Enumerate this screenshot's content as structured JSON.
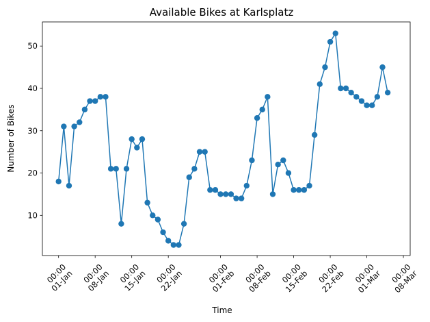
{
  "chart_data": {
    "type": "line",
    "title": "Available Bikes at Karlsplatz",
    "xlabel": "Time",
    "ylabel": "Number of Bikes",
    "grid": false,
    "marker": "circle",
    "series_color": "#1f77b4",
    "x_start": "2023-01-01",
    "x_step_days": 1,
    "x_ticks": [
      {
        "label_time": "00:00",
        "label_date": "01-Jan",
        "day": 0
      },
      {
        "label_time": "00:00",
        "label_date": "08-Jan",
        "day": 7
      },
      {
        "label_time": "00:00",
        "label_date": "15-Jan",
        "day": 14
      },
      {
        "label_time": "00:00",
        "label_date": "22-Jan",
        "day": 21
      },
      {
        "label_time": "00:00",
        "label_date": "01-Feb",
        "day": 31
      },
      {
        "label_time": "00:00",
        "label_date": "08-Feb",
        "day": 38
      },
      {
        "label_time": "00:00",
        "label_date": "15-Feb",
        "day": 45
      },
      {
        "label_time": "00:00",
        "label_date": "22-Feb",
        "day": 52
      },
      {
        "label_time": "00:00",
        "label_date": "01-Mar",
        "day": 59
      },
      {
        "label_time": "00:00",
        "label_date": "08-Mar",
        "day": 66
      }
    ],
    "xlim": [
      -3.1,
      67.3
    ],
    "ylim": [
      0.5,
      55.7
    ],
    "y_ticks": [
      10,
      20,
      30,
      40,
      50
    ],
    "series": [
      {
        "name": "Available Bikes",
        "values": [
          18,
          31,
          17,
          31,
          32,
          35,
          37,
          37,
          38,
          38,
          21,
          21,
          8,
          21,
          28,
          26,
          28,
          13,
          10,
          9,
          6,
          4,
          3,
          3,
          8,
          19,
          21,
          25,
          25,
          16,
          16,
          15,
          15,
          15,
          14,
          14,
          17,
          23,
          33,
          35,
          38,
          15,
          22,
          23,
          20,
          16,
          16,
          16,
          17,
          29,
          41,
          45,
          51,
          53,
          40,
          40,
          39,
          38,
          37,
          36,
          36,
          38,
          45,
          39
        ]
      }
    ]
  }
}
